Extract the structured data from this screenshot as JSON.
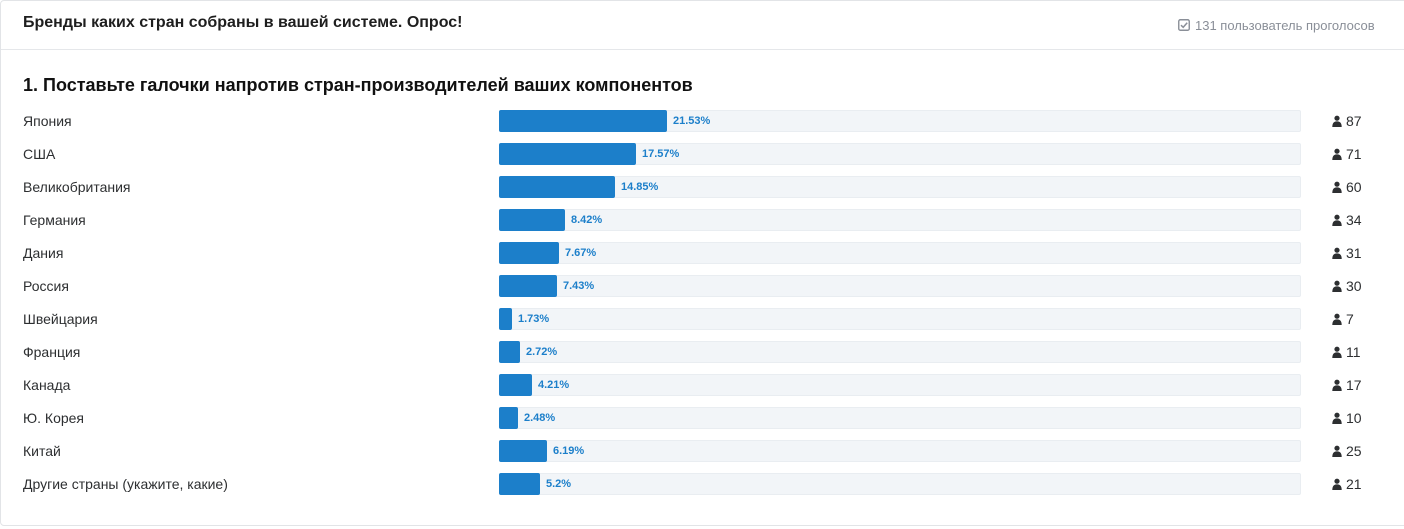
{
  "poll": {
    "title": "Бренды каких стран собраны в вашей системе. Опрос!",
    "voters_text": "131 пользователь проголосов",
    "voters_icon": "check-square-icon"
  },
  "question": {
    "title": "1. Поставьте галочки напротив стран-производителей ваших компонентов"
  },
  "accent_color": "#1c7fca",
  "options": [
    {
      "label": "Япония",
      "percent_text": "21.53%",
      "percent": 21.53,
      "votes": "87"
    },
    {
      "label": "США",
      "percent_text": "17.57%",
      "percent": 17.57,
      "votes": "71"
    },
    {
      "label": "Великобритания",
      "percent_text": "14.85%",
      "percent": 14.85,
      "votes": "60"
    },
    {
      "label": "Германия",
      "percent_text": "8.42%",
      "percent": 8.42,
      "votes": "34"
    },
    {
      "label": "Дания",
      "percent_text": "7.67%",
      "percent": 7.67,
      "votes": "31"
    },
    {
      "label": "Россия",
      "percent_text": "7.43%",
      "percent": 7.43,
      "votes": "30"
    },
    {
      "label": "Швейцария",
      "percent_text": "1.73%",
      "percent": 1.73,
      "votes": "7"
    },
    {
      "label": "Франция",
      "percent_text": "2.72%",
      "percent": 2.72,
      "votes": "11"
    },
    {
      "label": "Канада",
      "percent_text": "4.21%",
      "percent": 4.21,
      "votes": "17"
    },
    {
      "label": "Ю. Корея",
      "percent_text": "2.48%",
      "percent": 2.48,
      "votes": "10"
    },
    {
      "label": "Китай",
      "percent_text": "6.19%",
      "percent": 6.19,
      "votes": "25"
    },
    {
      "label": "Другие страны (укажите, какие)",
      "percent_text": "5.2%",
      "percent": 5.2,
      "votes": "21"
    }
  ]
}
